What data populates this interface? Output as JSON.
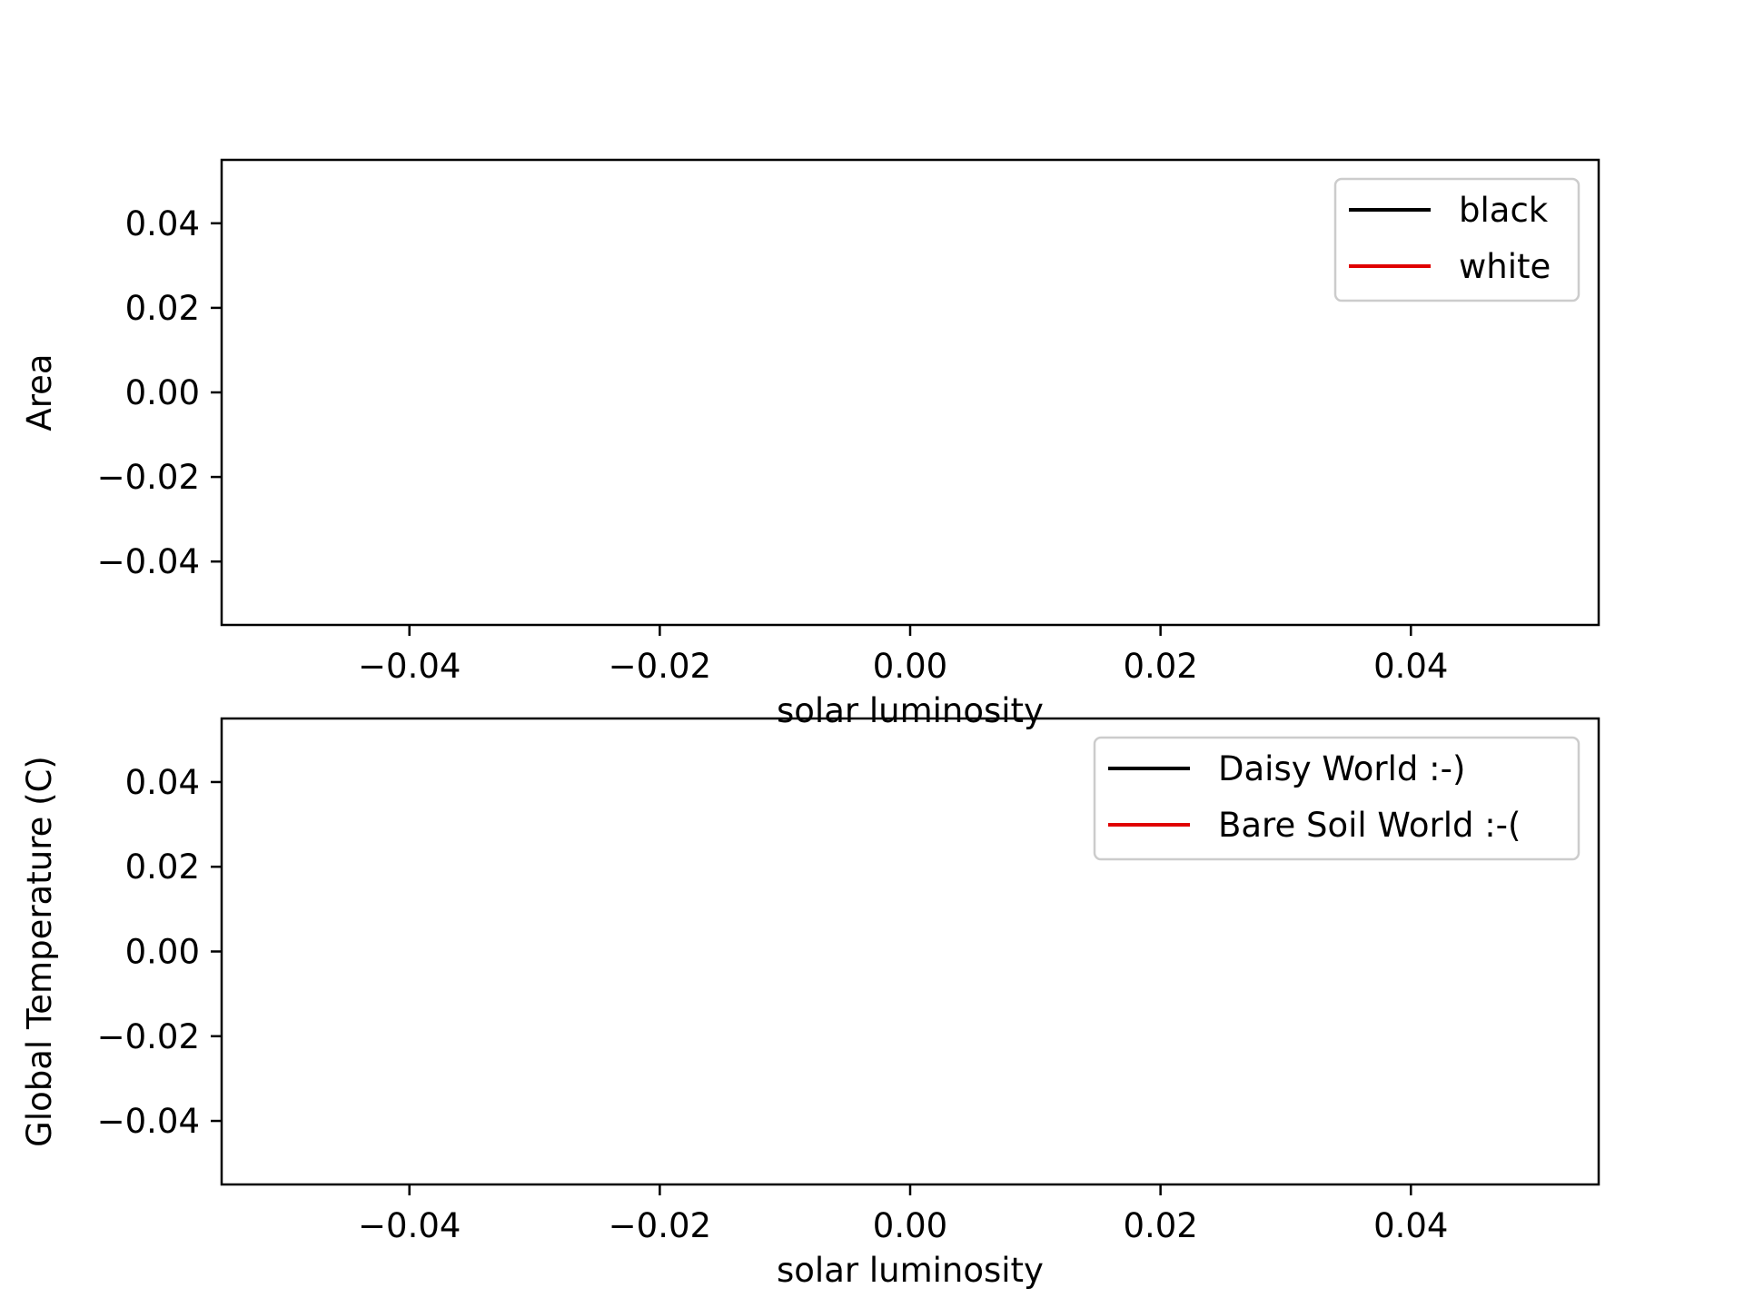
{
  "chart_data": [
    {
      "type": "line",
      "title": "",
      "xlabel": "solar luminosity",
      "ylabel": "Area",
      "xlim": [
        -0.055,
        0.055
      ],
      "ylim": [
        -0.055,
        0.055
      ],
      "xticks": [
        -0.04,
        -0.02,
        0.0,
        0.02,
        0.04
      ],
      "xtick_labels": [
        "−0.04",
        "−0.02",
        "0.00",
        "0.02",
        "0.04"
      ],
      "yticks": [
        0.04,
        0.02,
        0.0,
        -0.02,
        -0.04
      ],
      "ytick_labels": [
        "0.04",
        "0.02",
        "0.00",
        "−0.02",
        "−0.04"
      ],
      "grid": false,
      "legend_position": "upper right",
      "series": [
        {
          "name": "black",
          "color": "#000000",
          "x": [],
          "y": []
        },
        {
          "name": "white",
          "color": "#e00000",
          "x": [],
          "y": []
        }
      ]
    },
    {
      "type": "line",
      "title": "",
      "xlabel": "solar luminosity",
      "ylabel": "Global Temperature (C)",
      "xlim": [
        -0.055,
        0.055
      ],
      "ylim": [
        -0.055,
        0.055
      ],
      "xticks": [
        -0.04,
        -0.02,
        0.0,
        0.02,
        0.04
      ],
      "xtick_labels": [
        "−0.04",
        "−0.02",
        "0.00",
        "0.02",
        "0.04"
      ],
      "yticks": [
        0.04,
        0.02,
        0.0,
        -0.02,
        -0.04
      ],
      "ytick_labels": [
        "0.04",
        "0.02",
        "0.00",
        "−0.02",
        "−0.04"
      ],
      "grid": false,
      "legend_position": "upper right",
      "series": [
        {
          "name": "Daisy World :-)",
          "color": "#000000",
          "x": [],
          "y": []
        },
        {
          "name": "Bare Soil World :-(",
          "color": "#e00000",
          "x": [],
          "y": []
        }
      ]
    }
  ]
}
